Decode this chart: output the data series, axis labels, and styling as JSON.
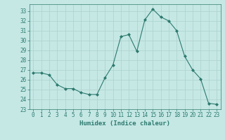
{
  "x": [
    0,
    1,
    2,
    3,
    4,
    5,
    6,
    7,
    8,
    9,
    10,
    11,
    12,
    13,
    14,
    15,
    16,
    17,
    18,
    19,
    20,
    21,
    22,
    23
  ],
  "y": [
    26.7,
    26.7,
    26.5,
    25.5,
    25.1,
    25.1,
    24.7,
    24.5,
    24.5,
    26.2,
    27.5,
    30.4,
    30.6,
    28.9,
    32.1,
    33.2,
    32.4,
    32.0,
    31.0,
    28.4,
    27.0,
    26.1,
    23.6,
    23.5
  ],
  "xlabel": "Humidex (Indice chaleur)",
  "xlim": [
    -0.5,
    23.5
  ],
  "ylim": [
    23,
    33.7
  ],
  "yticks": [
    23,
    24,
    25,
    26,
    27,
    28,
    29,
    30,
    31,
    32,
    33
  ],
  "xticks": [
    0,
    1,
    2,
    3,
    4,
    5,
    6,
    7,
    8,
    9,
    10,
    11,
    12,
    13,
    14,
    15,
    16,
    17,
    18,
    19,
    20,
    21,
    22,
    23
  ],
  "line_color": "#2d7a6e",
  "marker": "D",
  "marker_size": 2.0,
  "bg_color": "#c5e8e5",
  "grid_color": "#b0d4d0",
  "label_fontsize": 6.5,
  "tick_fontsize": 5.5
}
